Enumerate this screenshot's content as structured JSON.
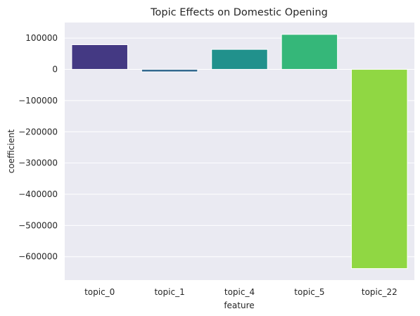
{
  "chart_data": {
    "type": "bar",
    "title": "Topic Effects on Domestic Opening",
    "xlabel": "feature",
    "ylabel": "coefficient",
    "categories": [
      "topic_0",
      "topic_1",
      "topic_4",
      "topic_5",
      "topic_22"
    ],
    "values": [
      79000,
      -8000,
      64000,
      112000,
      -638000
    ],
    "colors": [
      "#443983",
      "#31688e",
      "#21918c",
      "#35b779",
      "#90d743"
    ],
    "ylim": [
      -675000,
      150000
    ],
    "yticks": [
      100000,
      0,
      -100000,
      -200000,
      -300000,
      -400000,
      -500000,
      -600000
    ],
    "ytick_labels": [
      "100000",
      "0",
      "−100000",
      "−200000",
      "−300000",
      "−400000",
      "−500000",
      "−600000"
    ],
    "grid": true,
    "background": "#eaeaf2"
  }
}
